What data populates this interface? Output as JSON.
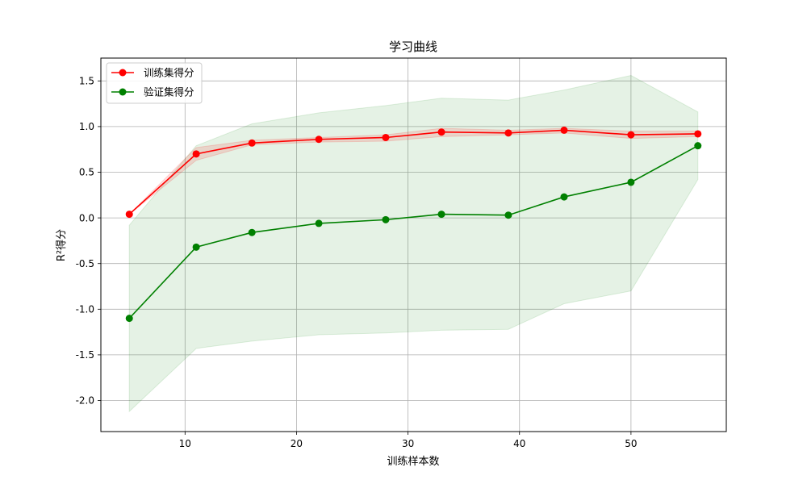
{
  "chart_data": {
    "type": "line",
    "title": "学习曲线",
    "xlabel": "训练样本数",
    "ylabel": "R²得分",
    "xlim": [
      2.45,
      58.55
    ],
    "ylim": [
      -2.34,
      1.75
    ],
    "xticks": [
      10,
      20,
      30,
      40,
      50
    ],
    "xtick_labels": [
      "10",
      "20",
      "30",
      "40",
      "50"
    ],
    "yticks": [
      1.5,
      1.0,
      0.5,
      0.0,
      -0.5,
      -1.0,
      -1.5,
      -2.0
    ],
    "ytick_labels": [
      "1.5",
      "1.0",
      "0.5",
      "0.0",
      "-0.5",
      "-1.0",
      "-1.5",
      "-2.0"
    ],
    "grid": true,
    "legend_position": "top-left",
    "x": [
      5,
      11,
      16,
      22,
      28,
      33,
      39,
      44,
      50,
      56
    ],
    "series": [
      {
        "name": "训练集得分",
        "color": "#ff0000",
        "band_color": "#ff0000",
        "values": [
          0.04,
          0.7,
          0.82,
          0.86,
          0.88,
          0.94,
          0.93,
          0.96,
          0.91,
          0.92
        ],
        "band_upper": [
          0.04,
          0.77,
          0.85,
          0.88,
          0.91,
          0.98,
          0.96,
          0.98,
          0.95,
          0.95
        ],
        "band_lower": [
          0.04,
          0.63,
          0.8,
          0.83,
          0.84,
          0.89,
          0.91,
          0.93,
          0.87,
          0.89
        ]
      },
      {
        "name": "验证集得分",
        "color": "#008000",
        "band_color": "#008000",
        "values": [
          -1.1,
          -0.32,
          -0.16,
          -0.06,
          -0.02,
          0.04,
          0.03,
          0.23,
          0.39,
          0.79
        ],
        "band_upper": [
          -0.08,
          0.79,
          1.03,
          1.15,
          1.23,
          1.31,
          1.29,
          1.4,
          1.56,
          1.16
        ],
        "band_lower": [
          -2.12,
          -1.43,
          -1.35,
          -1.28,
          -1.26,
          -1.23,
          -1.22,
          -0.94,
          -0.8,
          0.42
        ]
      }
    ]
  }
}
